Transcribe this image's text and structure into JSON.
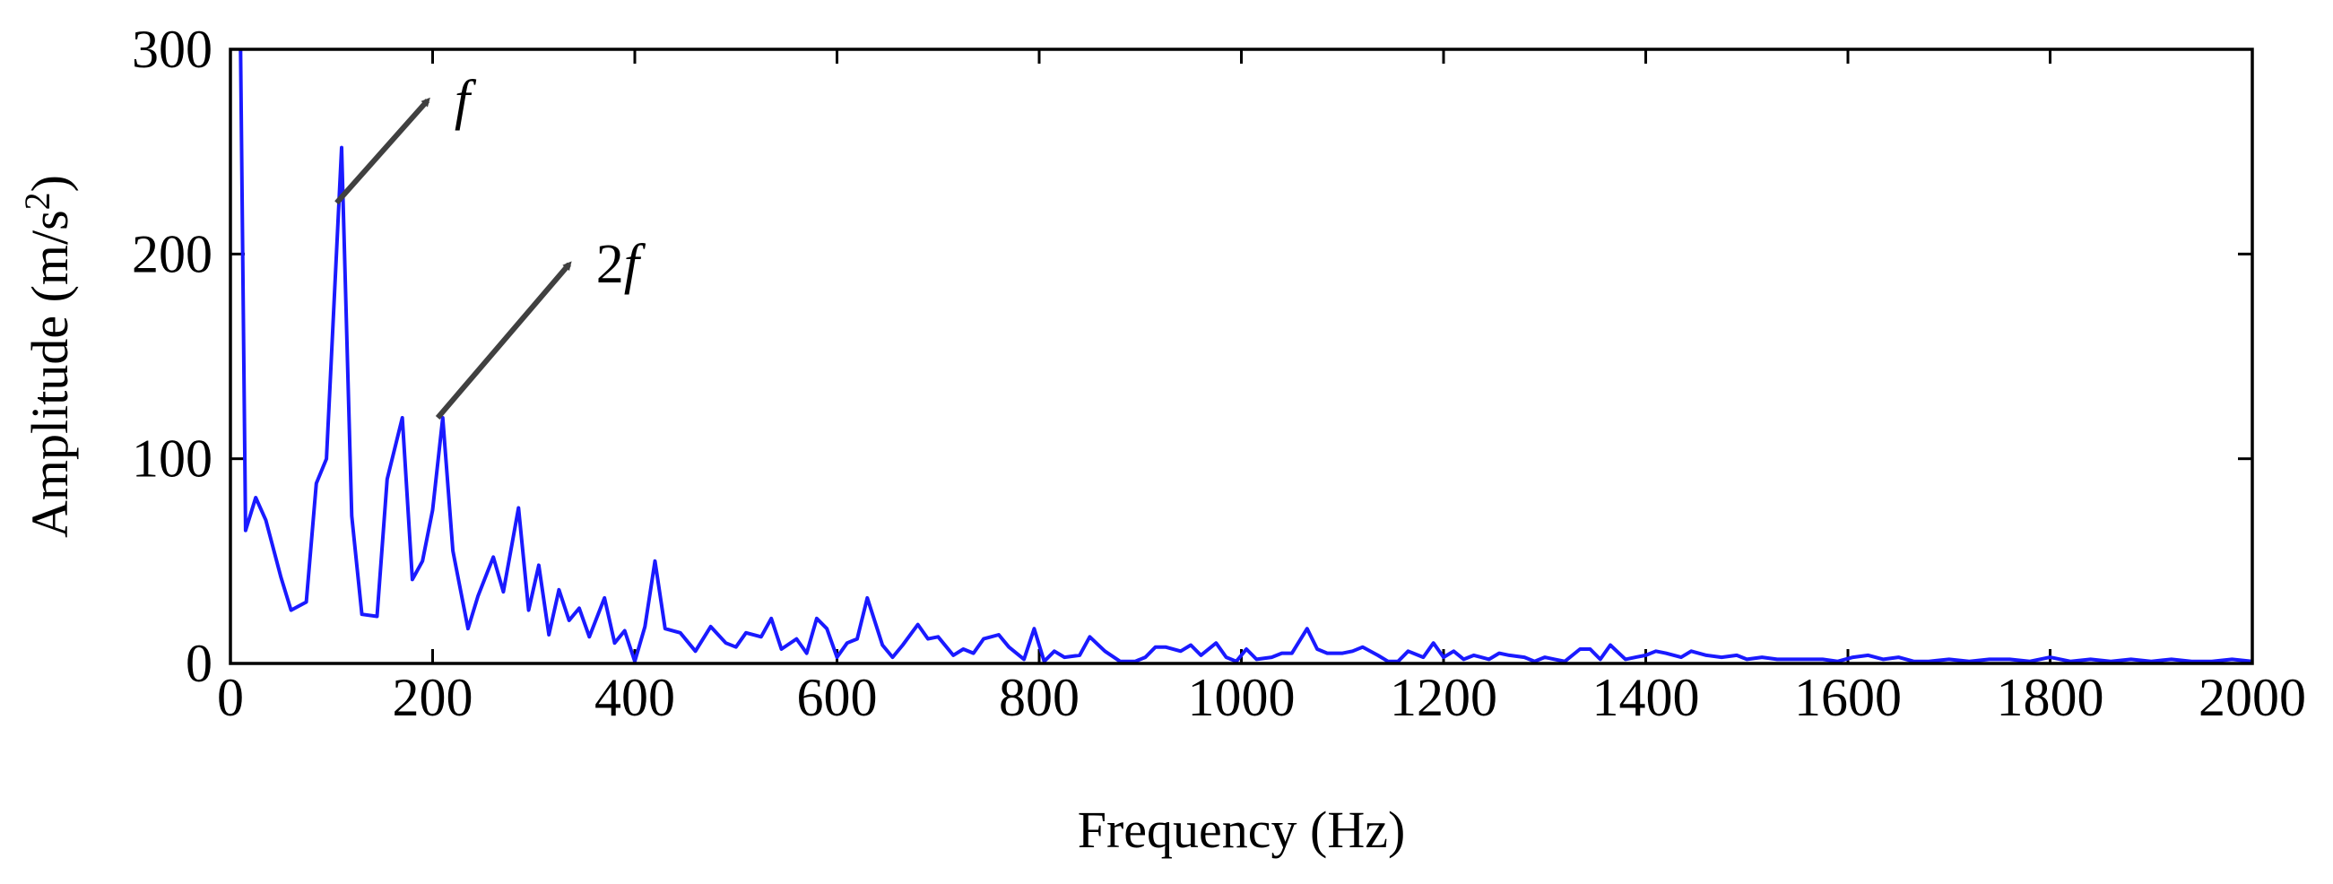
{
  "chart_data": {
    "type": "line",
    "title": "",
    "xlabel": "Frequency (Hz)",
    "ylabel_main": "Amplitude (m/s",
    "ylabel_sup": "2",
    "ylabel_end": ")",
    "xlim": [
      0,
      2000
    ],
    "ylim": [
      0,
      300
    ],
    "xticks": [
      0,
      200,
      400,
      600,
      800,
      1000,
      1200,
      1400,
      1600,
      1800,
      2000
    ],
    "yticks": [
      0,
      100,
      200,
      300
    ],
    "grid": false,
    "legend": "none",
    "series": [
      {
        "color": "#1a1aff",
        "x": [
          10,
          15,
          25,
          35,
          50,
          60,
          75,
          85,
          95,
          110,
          120,
          130,
          145,
          155,
          170,
          180,
          190,
          200,
          210,
          220,
          235,
          245,
          260,
          270,
          285,
          295,
          305,
          315,
          325,
          335,
          345,
          355,
          370,
          380,
          390,
          400,
          410,
          420,
          430,
          445,
          460,
          475,
          490,
          500,
          510,
          525,
          535,
          545,
          560,
          570,
          580,
          590,
          600,
          610,
          620,
          630,
          645,
          655,
          665,
          680,
          690,
          700,
          715,
          725,
          735,
          745,
          760,
          770,
          785,
          795,
          805,
          815,
          825,
          840,
          850,
          865,
          880,
          895,
          905,
          915,
          925,
          940,
          950,
          960,
          975,
          985,
          995,
          1005,
          1015,
          1030,
          1040,
          1050,
          1065,
          1075,
          1085,
          1100,
          1110,
          1120,
          1135,
          1145,
          1155,
          1165,
          1180,
          1190,
          1200,
          1210,
          1220,
          1230,
          1245,
          1255,
          1265,
          1280,
          1290,
          1300,
          1310,
          1320,
          1335,
          1345,
          1355,
          1365,
          1380,
          1390,
          1400,
          1410,
          1420,
          1435,
          1445,
          1460,
          1475,
          1490,
          1500,
          1515,
          1530,
          1545,
          1560,
          1575,
          1590,
          1605,
          1620,
          1635,
          1650,
          1665,
          1680,
          1700,
          1720,
          1740,
          1760,
          1780,
          1800,
          1820,
          1840,
          1860,
          1880,
          1900,
          1920,
          1940,
          1960,
          1980,
          2000
        ],
        "y": [
          300,
          65,
          81,
          70,
          42,
          26,
          30,
          88,
          100,
          252,
          72,
          24,
          23,
          90,
          120,
          41,
          50,
          75,
          120,
          55,
          17,
          33,
          52,
          35,
          76,
          26,
          48,
          14,
          36,
          21,
          27,
          13,
          32,
          10,
          16,
          1,
          18,
          50,
          17,
          15,
          6,
          18,
          10,
          8,
          15,
          13,
          22,
          7,
          12,
          5,
          22,
          17,
          3,
          10,
          12,
          32,
          9,
          3,
          9,
          19,
          12,
          13,
          4,
          7,
          5,
          12,
          14,
          8,
          2,
          17,
          1,
          6,
          3,
          4,
          13,
          6,
          1,
          1,
          3,
          8,
          8,
          6,
          9,
          4,
          10,
          3,
          1,
          7,
          2,
          3,
          5,
          5,
          17,
          7,
          5,
          5,
          6,
          8,
          4,
          1,
          1,
          6,
          3,
          10,
          3,
          6,
          2,
          4,
          2,
          5,
          4,
          3,
          1,
          3,
          2,
          1,
          7,
          7,
          2,
          9,
          2,
          3,
          4,
          6,
          5,
          3,
          6,
          4,
          3,
          4,
          2,
          3,
          2,
          2,
          2,
          2,
          1,
          3,
          4,
          2,
          3,
          1,
          1,
          2,
          1,
          2,
          2,
          1,
          3,
          1,
          2,
          1,
          2,
          1,
          2,
          1,
          1,
          2,
          1
        ]
      }
    ],
    "annotations": [
      {
        "label": "f",
        "label_main": "f",
        "label_prefix": "",
        "from": [
          105,
          225
        ],
        "to": [
          195,
          275
        ]
      },
      {
        "label": "2f",
        "label_main": "f",
        "label_prefix": "2",
        "from": [
          205,
          120
        ],
        "to": [
          335,
          195
        ]
      }
    ]
  }
}
